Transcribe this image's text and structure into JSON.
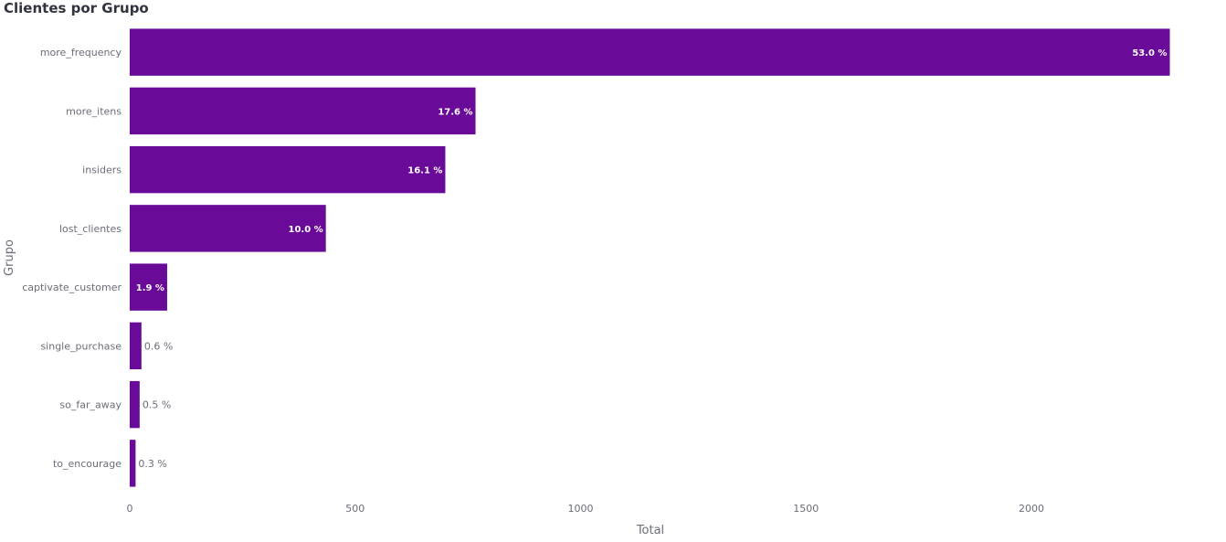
{
  "chart_data": {
    "type": "bar",
    "orientation": "horizontal",
    "title": "Clientes por Grupo",
    "xlabel": "Total",
    "ylabel": "Grupo",
    "xlim": [
      0,
      2310
    ],
    "x_ticks": [
      0,
      500,
      1000,
      1500,
      2000
    ],
    "grid": false,
    "bar_color": "#6a0a99",
    "categories": [
      "more_frequency",
      "more_itens",
      "insiders",
      "lost_clientes",
      "captivate_customer",
      "single_purchase",
      "so_far_away",
      "to_encourage"
    ],
    "values": [
      2307,
      767,
      700,
      435,
      83,
      26,
      22,
      13
    ],
    "labels": [
      "53.0 %",
      "17.6 %",
      "16.1 %",
      "10.0 %",
      "1.9 %",
      "0.6 %",
      "0.5 %",
      "0.3 %"
    ]
  }
}
